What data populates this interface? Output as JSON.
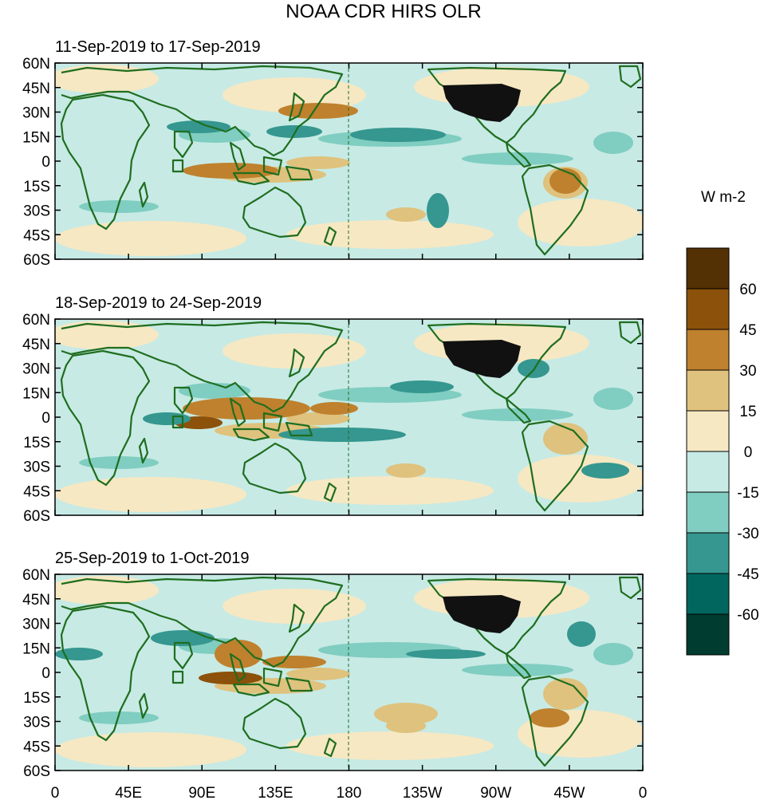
{
  "title": "NOAA CDR HIRS OLR",
  "panels": [
    {
      "label": "11-Sep-2019 to 17-Sep-2019"
    },
    {
      "label": "18-Sep-2019 to 24-Sep-2019"
    },
    {
      "label": "25-Sep-2019 to 1-Oct-2019"
    }
  ],
  "lat_ticks": [
    "60N",
    "45N",
    "30N",
    "15N",
    "0",
    "15S",
    "30S",
    "45S",
    "60S"
  ],
  "lon_ticks": [
    "0",
    "45E",
    "90E",
    "135E",
    "180",
    "135W",
    "90W",
    "45W",
    "0"
  ],
  "colorbar": {
    "units": "W m-2",
    "labels": [
      "60",
      "45",
      "30",
      "15",
      "0",
      "-15",
      "-30",
      "-45",
      "-60"
    ],
    "colors": [
      "#543005",
      "#8c510a",
      "#bf812d",
      "#dfc27d",
      "#f6e8c3",
      "#c7eae5",
      "#80cdc1",
      "#35978f",
      "#01665e",
      "#003c30"
    ]
  },
  "colors": {
    "land_outline": "#1f6e1f",
    "map_background": "#c7eae5",
    "dateline": "#1f6e1f",
    "us_fill": "#111111"
  }
}
